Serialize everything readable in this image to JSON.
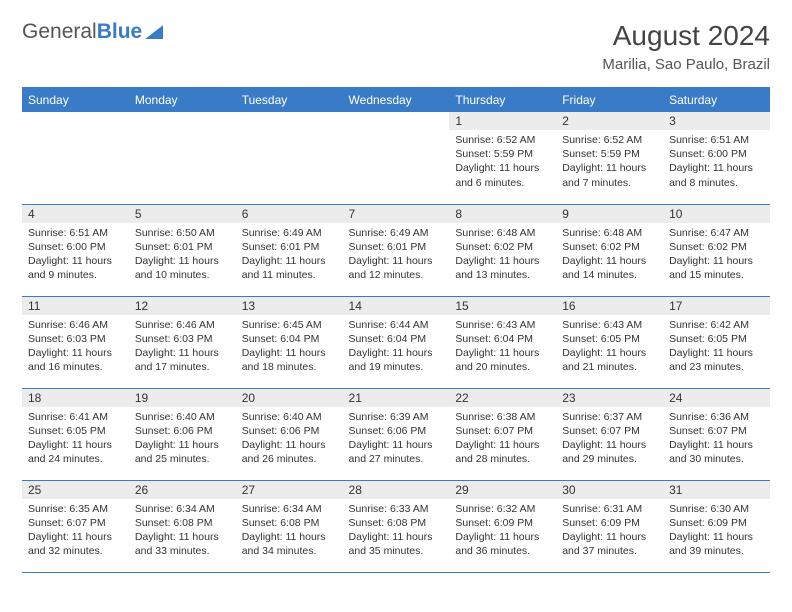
{
  "logo": {
    "text1": "General",
    "text2": "Blue"
  },
  "title": "August 2024",
  "location": "Marilia, Sao Paulo, Brazil",
  "colors": {
    "accent": "#3a7bc8",
    "daynum_bg": "#ececec",
    "text": "#333333"
  },
  "weekdays": [
    "Sunday",
    "Monday",
    "Tuesday",
    "Wednesday",
    "Thursday",
    "Friday",
    "Saturday"
  ],
  "weeks": [
    [
      {
        "day": "",
        "sunrise": "",
        "sunset": "",
        "daylight": ""
      },
      {
        "day": "",
        "sunrise": "",
        "sunset": "",
        "daylight": ""
      },
      {
        "day": "",
        "sunrise": "",
        "sunset": "",
        "daylight": ""
      },
      {
        "day": "",
        "sunrise": "",
        "sunset": "",
        "daylight": ""
      },
      {
        "day": "1",
        "sunrise": "Sunrise: 6:52 AM",
        "sunset": "Sunset: 5:59 PM",
        "daylight": "Daylight: 11 hours and 6 minutes."
      },
      {
        "day": "2",
        "sunrise": "Sunrise: 6:52 AM",
        "sunset": "Sunset: 5:59 PM",
        "daylight": "Daylight: 11 hours and 7 minutes."
      },
      {
        "day": "3",
        "sunrise": "Sunrise: 6:51 AM",
        "sunset": "Sunset: 6:00 PM",
        "daylight": "Daylight: 11 hours and 8 minutes."
      }
    ],
    [
      {
        "day": "4",
        "sunrise": "Sunrise: 6:51 AM",
        "sunset": "Sunset: 6:00 PM",
        "daylight": "Daylight: 11 hours and 9 minutes."
      },
      {
        "day": "5",
        "sunrise": "Sunrise: 6:50 AM",
        "sunset": "Sunset: 6:01 PM",
        "daylight": "Daylight: 11 hours and 10 minutes."
      },
      {
        "day": "6",
        "sunrise": "Sunrise: 6:49 AM",
        "sunset": "Sunset: 6:01 PM",
        "daylight": "Daylight: 11 hours and 11 minutes."
      },
      {
        "day": "7",
        "sunrise": "Sunrise: 6:49 AM",
        "sunset": "Sunset: 6:01 PM",
        "daylight": "Daylight: 11 hours and 12 minutes."
      },
      {
        "day": "8",
        "sunrise": "Sunrise: 6:48 AM",
        "sunset": "Sunset: 6:02 PM",
        "daylight": "Daylight: 11 hours and 13 minutes."
      },
      {
        "day": "9",
        "sunrise": "Sunrise: 6:48 AM",
        "sunset": "Sunset: 6:02 PM",
        "daylight": "Daylight: 11 hours and 14 minutes."
      },
      {
        "day": "10",
        "sunrise": "Sunrise: 6:47 AM",
        "sunset": "Sunset: 6:02 PM",
        "daylight": "Daylight: 11 hours and 15 minutes."
      }
    ],
    [
      {
        "day": "11",
        "sunrise": "Sunrise: 6:46 AM",
        "sunset": "Sunset: 6:03 PM",
        "daylight": "Daylight: 11 hours and 16 minutes."
      },
      {
        "day": "12",
        "sunrise": "Sunrise: 6:46 AM",
        "sunset": "Sunset: 6:03 PM",
        "daylight": "Daylight: 11 hours and 17 minutes."
      },
      {
        "day": "13",
        "sunrise": "Sunrise: 6:45 AM",
        "sunset": "Sunset: 6:04 PM",
        "daylight": "Daylight: 11 hours and 18 minutes."
      },
      {
        "day": "14",
        "sunrise": "Sunrise: 6:44 AM",
        "sunset": "Sunset: 6:04 PM",
        "daylight": "Daylight: 11 hours and 19 minutes."
      },
      {
        "day": "15",
        "sunrise": "Sunrise: 6:43 AM",
        "sunset": "Sunset: 6:04 PM",
        "daylight": "Daylight: 11 hours and 20 minutes."
      },
      {
        "day": "16",
        "sunrise": "Sunrise: 6:43 AM",
        "sunset": "Sunset: 6:05 PM",
        "daylight": "Daylight: 11 hours and 21 minutes."
      },
      {
        "day": "17",
        "sunrise": "Sunrise: 6:42 AM",
        "sunset": "Sunset: 6:05 PM",
        "daylight": "Daylight: 11 hours and 23 minutes."
      }
    ],
    [
      {
        "day": "18",
        "sunrise": "Sunrise: 6:41 AM",
        "sunset": "Sunset: 6:05 PM",
        "daylight": "Daylight: 11 hours and 24 minutes."
      },
      {
        "day": "19",
        "sunrise": "Sunrise: 6:40 AM",
        "sunset": "Sunset: 6:06 PM",
        "daylight": "Daylight: 11 hours and 25 minutes."
      },
      {
        "day": "20",
        "sunrise": "Sunrise: 6:40 AM",
        "sunset": "Sunset: 6:06 PM",
        "daylight": "Daylight: 11 hours and 26 minutes."
      },
      {
        "day": "21",
        "sunrise": "Sunrise: 6:39 AM",
        "sunset": "Sunset: 6:06 PM",
        "daylight": "Daylight: 11 hours and 27 minutes."
      },
      {
        "day": "22",
        "sunrise": "Sunrise: 6:38 AM",
        "sunset": "Sunset: 6:07 PM",
        "daylight": "Daylight: 11 hours and 28 minutes."
      },
      {
        "day": "23",
        "sunrise": "Sunrise: 6:37 AM",
        "sunset": "Sunset: 6:07 PM",
        "daylight": "Daylight: 11 hours and 29 minutes."
      },
      {
        "day": "24",
        "sunrise": "Sunrise: 6:36 AM",
        "sunset": "Sunset: 6:07 PM",
        "daylight": "Daylight: 11 hours and 30 minutes."
      }
    ],
    [
      {
        "day": "25",
        "sunrise": "Sunrise: 6:35 AM",
        "sunset": "Sunset: 6:07 PM",
        "daylight": "Daylight: 11 hours and 32 minutes."
      },
      {
        "day": "26",
        "sunrise": "Sunrise: 6:34 AM",
        "sunset": "Sunset: 6:08 PM",
        "daylight": "Daylight: 11 hours and 33 minutes."
      },
      {
        "day": "27",
        "sunrise": "Sunrise: 6:34 AM",
        "sunset": "Sunset: 6:08 PM",
        "daylight": "Daylight: 11 hours and 34 minutes."
      },
      {
        "day": "28",
        "sunrise": "Sunrise: 6:33 AM",
        "sunset": "Sunset: 6:08 PM",
        "daylight": "Daylight: 11 hours and 35 minutes."
      },
      {
        "day": "29",
        "sunrise": "Sunrise: 6:32 AM",
        "sunset": "Sunset: 6:09 PM",
        "daylight": "Daylight: 11 hours and 36 minutes."
      },
      {
        "day": "30",
        "sunrise": "Sunrise: 6:31 AM",
        "sunset": "Sunset: 6:09 PM",
        "daylight": "Daylight: 11 hours and 37 minutes."
      },
      {
        "day": "31",
        "sunrise": "Sunrise: 6:30 AM",
        "sunset": "Sunset: 6:09 PM",
        "daylight": "Daylight: 11 hours and 39 minutes."
      }
    ]
  ]
}
